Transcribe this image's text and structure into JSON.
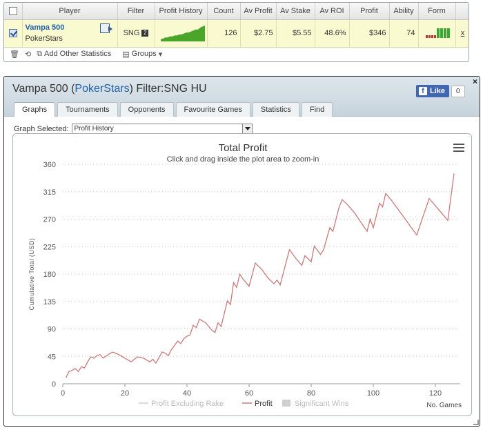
{
  "stats_table": {
    "headers": [
      "Player",
      "Filter",
      "Profit History",
      "Count",
      "Av Profit",
      "Av Stake",
      "Av ROI",
      "Profit",
      "Ability",
      "Form"
    ],
    "row": {
      "selected": true,
      "player_name": "Vampa 500",
      "site": "PokerStars",
      "filter": "SNG",
      "filter_badge": "2",
      "count": "126",
      "av_profit": "$2.75",
      "av_stake": "$5.55",
      "av_roi": "48.6%",
      "profit": "$346",
      "ability": "74",
      "row_action": "x"
    },
    "sparkline": [
      2,
      3,
      4,
      4,
      5,
      5,
      6,
      6,
      7,
      7,
      8,
      9,
      9,
      10,
      11,
      12,
      12,
      14,
      15,
      16
    ],
    "form_bars": [
      0,
      0,
      0,
      0,
      1,
      1,
      1,
      1
    ],
    "colors": {
      "row_bg": "#fafad0",
      "sparkline": "#4aa52a",
      "form_good": "#3aa832",
      "form_bad": "#c33333"
    }
  },
  "toolbar": {
    "add_stats_label": "Add Other Statistics",
    "groups_label": "Groups"
  },
  "panel": {
    "title_prefix": "Vampa 500 (",
    "title_site": "PokerStars",
    "title_suffix": ") Filter:SNG HU",
    "fb_like_label": "Like",
    "fb_count": "0",
    "close_label": "×",
    "tabs": [
      {
        "label": "Graphs",
        "active": true
      },
      {
        "label": "Tournaments",
        "active": false
      },
      {
        "label": "Opponents",
        "active": false
      },
      {
        "label": "Favourite Games",
        "active": false
      },
      {
        "label": "Statistics",
        "active": false
      },
      {
        "label": "Find",
        "active": false
      }
    ],
    "graph_selected_label": "Graph Selected:",
    "graph_selected_value": "Profit History"
  },
  "chart_data": {
    "type": "line",
    "title": "Total Profit",
    "subtitle": "Click and drag inside the plot area to zoom-in",
    "xlabel": "No. Games",
    "ylabel": "Cumulative Total (USD)",
    "xlim": [
      0,
      128
    ],
    "ylim": [
      0,
      360
    ],
    "x_ticks": [
      0,
      20,
      40,
      60,
      80,
      100,
      120
    ],
    "y_ticks": [
      0,
      45,
      90,
      135,
      180,
      225,
      270,
      315,
      360
    ],
    "grid": true,
    "legend": [
      {
        "name": "Profit Excluding Rake",
        "active": false
      },
      {
        "name": "Profit",
        "active": true
      },
      {
        "name": "Significant Wins",
        "active": false
      }
    ],
    "legend_position": "bottom",
    "series": [
      {
        "name": "Profit",
        "color": "#c97a7a",
        "points": [
          [
            1,
            10
          ],
          [
            2,
            20
          ],
          [
            3,
            22
          ],
          [
            4,
            25
          ],
          [
            5,
            20
          ],
          [
            6,
            28
          ],
          [
            7,
            26
          ],
          [
            8,
            36
          ],
          [
            9,
            44
          ],
          [
            10,
            42
          ],
          [
            11,
            46
          ],
          [
            12,
            48
          ],
          [
            13,
            42
          ],
          [
            14,
            46
          ],
          [
            16,
            52
          ],
          [
            18,
            48
          ],
          [
            20,
            42
          ],
          [
            22,
            36
          ],
          [
            24,
            44
          ],
          [
            26,
            42
          ],
          [
            28,
            36
          ],
          [
            29,
            40
          ],
          [
            30,
            34
          ],
          [
            32,
            52
          ],
          [
            33,
            50
          ],
          [
            34,
            46
          ],
          [
            35,
            56
          ],
          [
            37,
            70
          ],
          [
            38,
            66
          ],
          [
            39,
            74
          ],
          [
            40,
            78
          ],
          [
            41,
            80
          ],
          [
            42,
            96
          ],
          [
            43,
            92
          ],
          [
            44,
            106
          ],
          [
            46,
            100
          ],
          [
            48,
            88
          ],
          [
            49,
            84
          ],
          [
            50,
            100
          ],
          [
            51,
            94
          ],
          [
            53,
            136
          ],
          [
            54,
            130
          ],
          [
            55,
            166
          ],
          [
            56,
            158
          ],
          [
            57,
            180
          ],
          [
            58,
            172
          ],
          [
            60,
            160
          ],
          [
            62,
            198
          ],
          [
            64,
            188
          ],
          [
            66,
            174
          ],
          [
            68,
            164
          ],
          [
            69,
            170
          ],
          [
            70,
            162
          ],
          [
            73,
            220
          ],
          [
            75,
            206
          ],
          [
            77,
            194
          ],
          [
            78,
            210
          ],
          [
            80,
            200
          ],
          [
            81,
            226
          ],
          [
            83,
            212
          ],
          [
            84,
            220
          ],
          [
            86,
            256
          ],
          [
            87,
            250
          ],
          [
            89,
            290
          ],
          [
            90,
            302
          ],
          [
            92,
            292
          ],
          [
            94,
            280
          ],
          [
            98,
            250
          ],
          [
            99,
            270
          ],
          [
            100,
            256
          ],
          [
            102,
            296
          ],
          [
            103,
            290
          ],
          [
            104,
            312
          ],
          [
            106,
            300
          ],
          [
            110,
            272
          ],
          [
            114,
            244
          ],
          [
            118,
            304
          ],
          [
            124,
            268
          ],
          [
            126,
            345
          ]
        ]
      }
    ]
  }
}
